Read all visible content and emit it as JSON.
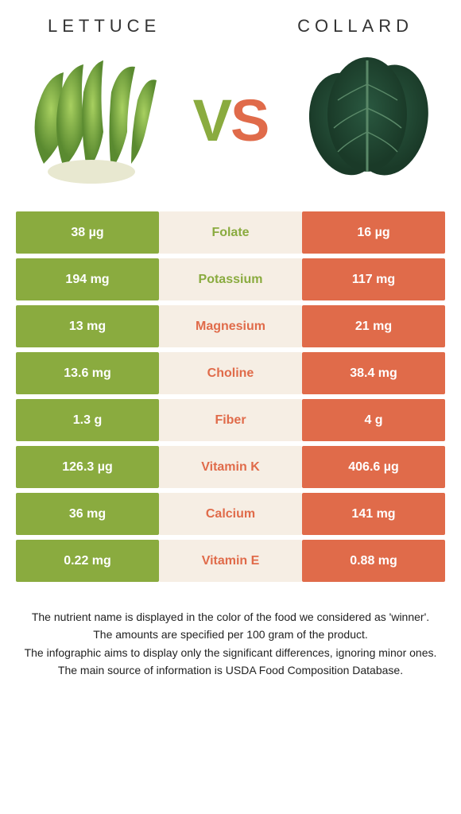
{
  "header": {
    "left_title": "LETTUCE",
    "right_title": "COLLARD"
  },
  "vs": {
    "v": "V",
    "s": "S"
  },
  "colors": {
    "green": "#8aab3f",
    "orange": "#e06b4a",
    "beige": "#f6eee4",
    "lettuce_light": "#a8d060",
    "lettuce_dark": "#5a8a30",
    "lettuce_stem": "#e8e8d0",
    "collard_dark": "#1a3a28",
    "collard_mid": "#2a5840",
    "collard_vein": "#5a8868"
  },
  "rows": [
    {
      "left": "38 µg",
      "label": "Folate",
      "right": "16 µg",
      "winner": "green"
    },
    {
      "left": "194 mg",
      "label": "Potassium",
      "right": "117 mg",
      "winner": "green"
    },
    {
      "left": "13 mg",
      "label": "Magnesium",
      "right": "21 mg",
      "winner": "orange"
    },
    {
      "left": "13.6 mg",
      "label": "Choline",
      "right": "38.4 mg",
      "winner": "orange"
    },
    {
      "left": "1.3 g",
      "label": "Fiber",
      "right": "4 g",
      "winner": "orange"
    },
    {
      "left": "126.3 µg",
      "label": "Vitamin K",
      "right": "406.6 µg",
      "winner": "orange"
    },
    {
      "left": "36 mg",
      "label": "Calcium",
      "right": "141 mg",
      "winner": "orange"
    },
    {
      "left": "0.22 mg",
      "label": "Vitamin E",
      "right": "0.88 mg",
      "winner": "orange"
    }
  ],
  "footer": {
    "l1": "The nutrient name is displayed in the color of the food we considered as 'winner'.",
    "l2": "The amounts are specified per 100 gram of the product.",
    "l3": "The infographic aims to display only the significant differences, ignoring minor ones.",
    "l4": "The main source of information is USDA Food Composition Database."
  }
}
